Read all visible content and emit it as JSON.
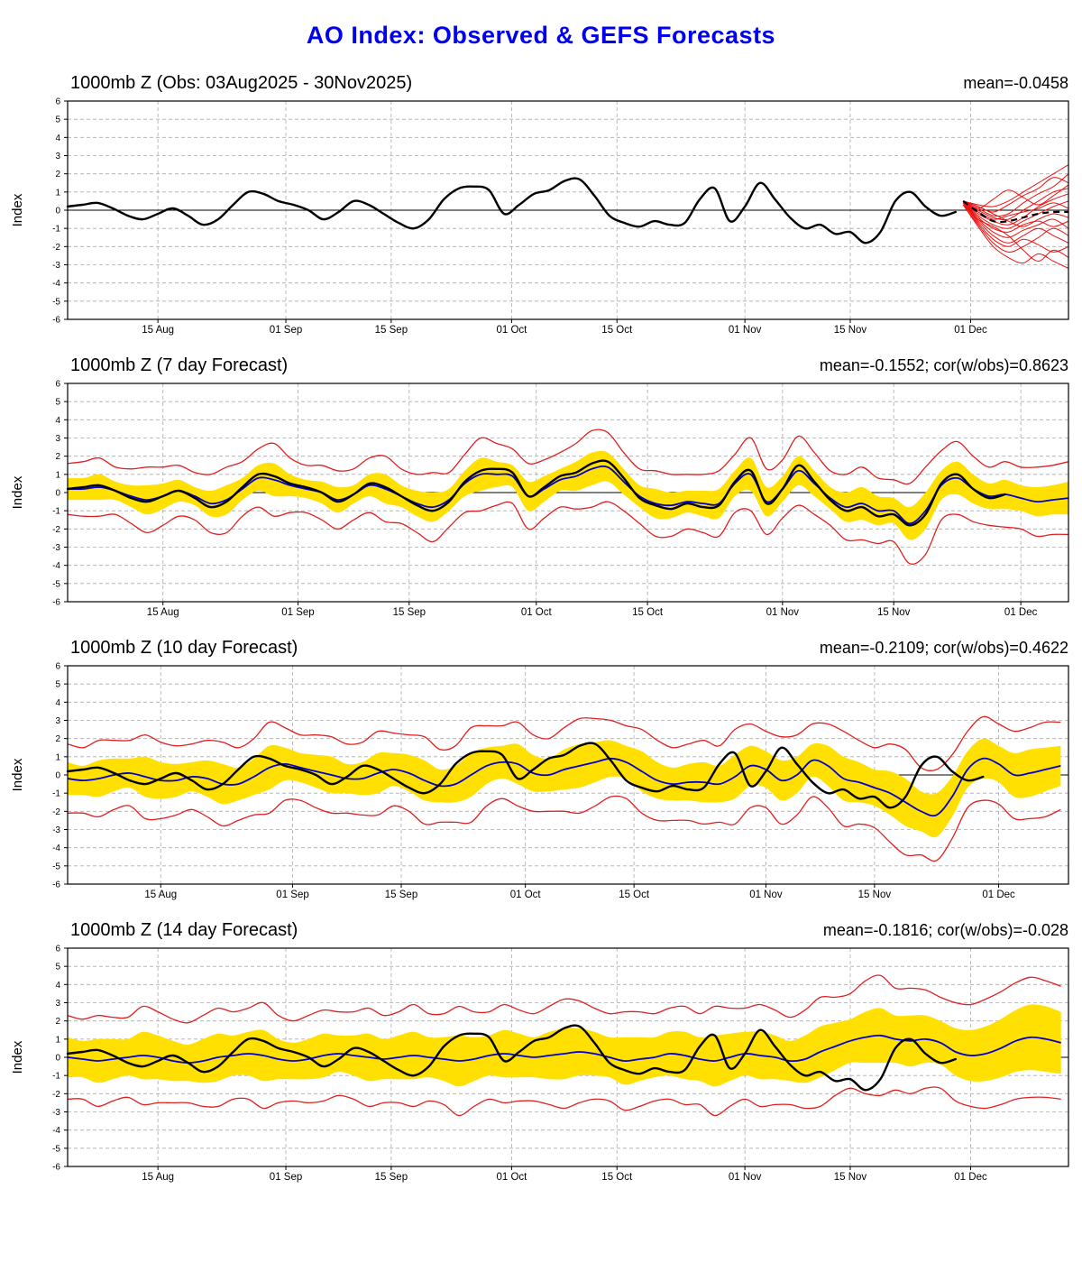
{
  "title": "AO Index: Observed & GEFS Forecasts",
  "colors": {
    "title_blue": "#0000ee",
    "observed": "#000000",
    "forecast_mean_line": "#0000cc",
    "band_yellow": "#ffe000",
    "envelope_red": "#e02020",
    "members_red": "#ee1111",
    "grid": "#aaaaaa",
    "frame": "#000000"
  },
  "axis": {
    "ylabel": "Index",
    "ymin": -6,
    "ymax": 6,
    "yticks": [
      6,
      5,
      4,
      3,
      2,
      1,
      0,
      -1,
      -2,
      -3,
      -4,
      -5,
      -6
    ],
    "xtick_labels": [
      "15 Aug",
      "01 Sep",
      "15 Sep",
      "01 Oct",
      "15 Oct",
      "01 Nov",
      "15 Nov",
      "01 Dec"
    ],
    "xtick_days": [
      12,
      29,
      43,
      59,
      73,
      90,
      104,
      120
    ]
  },
  "chart_data": [
    {
      "type": "line",
      "title": "1000mb Z (Obs: 03Aug2025 - 30Nov2025)",
      "stats": "mean=-0.0458",
      "x_domain": [
        0,
        133
      ],
      "obs": {
        "x_start": 0,
        "x_step": 2,
        "values": [
          0.2,
          0.3,
          0.4,
          0.1,
          -0.3,
          -0.5,
          -0.2,
          0.1,
          -0.3,
          -0.8,
          -0.5,
          0.3,
          1.0,
          0.9,
          0.5,
          0.3,
          0.0,
          -0.5,
          -0.1,
          0.5,
          0.3,
          -0.2,
          -0.7,
          -1.0,
          -0.5,
          0.6,
          1.2,
          1.3,
          1.1,
          -0.2,
          0.3,
          0.9,
          1.1,
          1.6,
          1.7,
          0.8,
          -0.3,
          -0.7,
          -0.9,
          -0.6,
          -0.8,
          -0.7,
          0.6,
          1.2,
          -0.6,
          0.2,
          1.5,
          0.6,
          -0.4,
          -1.0,
          -0.8,
          -1.3,
          -1.2,
          -1.8,
          -1.2,
          0.5,
          1.0,
          0.2,
          -0.3,
          -0.1
        ]
      },
      "forecast_mean": {
        "x_start": 119,
        "x_step": 2,
        "values": [
          0.5,
          -0.1,
          -0.6,
          -0.6,
          -0.4,
          -0.2,
          -0.1,
          -0.1
        ]
      },
      "members": {
        "x_start": 119,
        "x_step": 2,
        "sets": [
          [
            0.5,
            0.3,
            0.2,
            0.5,
            1.0,
            1.5,
            2.0,
            2.5
          ],
          [
            0.5,
            0.2,
            -0.1,
            0.3,
            0.8,
            1.2,
            1.8,
            1.5
          ],
          [
            0.5,
            0.1,
            -0.3,
            -0.2,
            0.4,
            0.9,
            1.3,
            2.0
          ],
          [
            0.5,
            0.0,
            -0.4,
            -0.5,
            0.0,
            0.5,
            1.0,
            1.2
          ],
          [
            0.4,
            -0.2,
            -0.6,
            -0.8,
            -0.4,
            0.2,
            0.6,
            0.9
          ],
          [
            0.4,
            -0.3,
            -0.8,
            -1.0,
            -0.6,
            -0.2,
            0.2,
            0.5
          ],
          [
            0.4,
            -0.1,
            -0.5,
            -0.3,
            -0.1,
            0.1,
            0.4,
            0.1
          ],
          [
            0.5,
            0.2,
            -0.2,
            -0.6,
            -0.9,
            -0.5,
            -0.2,
            -0.4
          ],
          [
            0.4,
            -0.4,
            -1.0,
            -1.2,
            -0.8,
            -0.6,
            -0.9,
            -0.6
          ],
          [
            0.4,
            -0.5,
            -1.2,
            -1.5,
            -1.1,
            -0.8,
            -0.5,
            -1.0
          ],
          [
            0.4,
            -0.6,
            -1.4,
            -1.8,
            -1.4,
            -1.0,
            -1.4,
            -1.8
          ],
          [
            0.4,
            -0.7,
            -1.6,
            -2.0,
            -1.6,
            -1.9,
            -2.3,
            -2.0
          ],
          [
            0.3,
            -0.8,
            -1.8,
            -2.3,
            -2.0,
            -1.5,
            -1.0,
            -1.4
          ],
          [
            0.3,
            -0.9,
            -2.0,
            -2.6,
            -2.9,
            -2.4,
            -2.8,
            -3.2
          ],
          [
            0.3,
            -0.5,
            -0.9,
            -1.4,
            -2.2,
            -2.8,
            -2.2,
            -2.6
          ],
          [
            0.4,
            0.1,
            0.6,
            1.1,
            0.7,
            0.3,
            0.8,
            1.4
          ]
        ]
      }
    },
    {
      "type": "line",
      "title": "1000mb Z (7 day Forecast)",
      "stats": "mean=-0.1552; cor(w/obs)=0.8623",
      "x_domain": [
        0,
        126
      ],
      "obs": "ref:0",
      "mean": {
        "x_start": 0,
        "x_step": 2,
        "values": [
          0.2,
          0.2,
          0.3,
          0.1,
          -0.2,
          -0.4,
          -0.2,
          0.1,
          -0.2,
          -0.6,
          -0.4,
          0.2,
          0.8,
          0.7,
          0.4,
          0.2,
          0.0,
          -0.4,
          -0.1,
          0.4,
          0.2,
          -0.2,
          -0.6,
          -0.8,
          -0.4,
          0.5,
          1.0,
          1.0,
          0.9,
          -0.2,
          0.2,
          0.7,
          0.9,
          1.3,
          1.4,
          0.6,
          -0.2,
          -0.6,
          -0.7,
          -0.5,
          -0.6,
          -0.6,
          0.5,
          1.0,
          -0.5,
          0.2,
          1.2,
          0.5,
          -0.3,
          -0.8,
          -0.6,
          -1.0,
          -1.0,
          -1.7,
          -1.0,
          0.4,
          0.8,
          0.2,
          -0.2,
          -0.1,
          -0.3,
          -0.5,
          -0.4,
          -0.3
        ]
      },
      "spread": [
        0.6,
        0.6,
        0.7,
        0.5,
        0.6,
        0.8,
        0.7,
        0.6,
        0.5,
        0.7,
        0.8,
        0.6,
        0.7,
        0.9,
        0.6,
        0.5,
        0.6,
        0.7,
        0.5,
        0.6,
        0.8,
        0.6,
        0.7,
        0.8,
        0.6,
        0.7,
        0.9,
        0.7,
        0.6,
        0.8,
        0.7,
        0.6,
        0.8,
        0.9,
        0.8,
        0.7,
        0.6,
        0.8,
        0.7,
        0.6,
        0.7,
        0.8,
        0.7,
        0.9,
        0.8,
        0.7,
        0.8,
        0.7,
        0.6,
        0.8,
        0.9,
        0.8,
        0.7,
        0.9,
        1.0,
        0.8,
        0.9,
        0.8,
        0.7,
        0.8,
        0.7,
        0.8,
        0.8,
        0.9
      ],
      "envelope": [
        1.4,
        1.5,
        1.6,
        1.3,
        1.5,
        1.8,
        1.6,
        1.4,
        1.3,
        1.6,
        1.8,
        1.5,
        1.6,
        2.0,
        1.5,
        1.3,
        1.5,
        1.6,
        1.4,
        1.5,
        1.8,
        1.5,
        1.6,
        1.9,
        1.5,
        1.6,
        2.0,
        1.7,
        1.5,
        1.8,
        1.6,
        1.5,
        1.8,
        2.1,
        1.9,
        1.6,
        1.5,
        1.8,
        1.7,
        1.5,
        1.6,
        1.8,
        1.6,
        2.0,
        1.8,
        1.6,
        1.9,
        1.7,
        1.5,
        1.8,
        2.0,
        1.8,
        1.7,
        2.2,
        2.4,
        1.9,
        2.0,
        1.8,
        1.6,
        1.8,
        1.7,
        1.9,
        1.9,
        2.0
      ]
    },
    {
      "type": "line",
      "title": "1000mb Z (10 day Forecast)",
      "stats": "mean=-0.2109; cor(w/obs)=0.4622",
      "x_domain": [
        0,
        129
      ],
      "obs": "ref:0",
      "mean": {
        "x_start": 0,
        "x_step": 2,
        "values": [
          -0.2,
          -0.3,
          -0.2,
          0.0,
          0.1,
          -0.1,
          -0.3,
          -0.3,
          -0.1,
          -0.2,
          -0.5,
          -0.5,
          -0.1,
          0.4,
          0.6,
          0.4,
          0.2,
          0.0,
          -0.2,
          -0.2,
          0.1,
          0.3,
          0.1,
          -0.3,
          -0.6,
          -0.5,
          0.0,
          0.5,
          0.7,
          0.6,
          0.1,
          0.0,
          0.3,
          0.5,
          0.7,
          0.9,
          0.7,
          0.2,
          -0.3,
          -0.5,
          -0.4,
          -0.4,
          -0.5,
          -0.1,
          0.5,
          0.3,
          -0.3,
          0.0,
          0.8,
          0.5,
          -0.2,
          -0.4,
          -0.7,
          -1.0,
          -1.5,
          -2.0,
          -2.2,
          -1.2,
          0.3,
          0.9,
          0.6,
          0.0,
          0.1,
          0.3,
          0.5
        ]
      },
      "spread": [
        0.9,
        0.8,
        1.0,
        0.9,
        0.8,
        1.1,
        1.0,
        0.9,
        0.8,
        1.0,
        1.1,
        0.9,
        1.0,
        1.2,
        0.9,
        0.8,
        0.9,
        1.0,
        0.8,
        0.9,
        1.1,
        0.9,
        1.0,
        1.1,
        0.9,
        1.0,
        1.2,
        1.0,
        0.9,
        1.1,
        1.0,
        0.9,
        1.1,
        1.2,
        1.1,
        1.0,
        0.9,
        1.1,
        1.0,
        0.9,
        1.0,
        1.1,
        1.0,
        1.2,
        1.1,
        1.0,
        1.1,
        1.0,
        0.9,
        1.1,
        1.2,
        1.1,
        1.0,
        1.2,
        1.3,
        1.1,
        1.2,
        1.1,
        1.0,
        1.1,
        1.0,
        1.2,
        1.3,
        1.2,
        1.1
      ],
      "envelope": [
        1.9,
        1.8,
        2.1,
        1.9,
        1.8,
        2.3,
        2.1,
        1.9,
        1.8,
        2.1,
        2.3,
        2.0,
        2.1,
        2.5,
        2.0,
        1.8,
        2.0,
        2.1,
        1.9,
        2.0,
        2.3,
        2.0,
        2.1,
        2.4,
        2.0,
        2.1,
        2.6,
        2.2,
        2.0,
        2.3,
        2.1,
        2.0,
        2.3,
        2.6,
        2.4,
        2.1,
        2.0,
        2.3,
        2.2,
        2.0,
        2.1,
        2.3,
        2.1,
        2.6,
        2.3,
        2.1,
        2.4,
        2.2,
        2.0,
        2.3,
        2.6,
        2.3,
        2.2,
        2.7,
        2.9,
        2.4,
        2.5,
        2.3,
        2.1,
        2.3,
        2.2,
        2.4,
        2.5,
        2.6,
        2.4
      ]
    },
    {
      "type": "line",
      "title": "1000mb Z (14 day Forecast)",
      "stats": "mean=-0.1816; cor(w/obs)=-0.028",
      "x_domain": [
        0,
        133
      ],
      "obs": "ref:0",
      "mean": {
        "x_start": 0,
        "x_step": 2,
        "values": [
          0.0,
          -0.1,
          -0.2,
          -0.1,
          0.0,
          0.1,
          0.0,
          -0.2,
          -0.3,
          -0.2,
          0.0,
          0.1,
          0.2,
          0.1,
          -0.1,
          -0.2,
          -0.1,
          0.1,
          0.2,
          0.1,
          0.0,
          -0.1,
          0.0,
          0.1,
          0.0,
          -0.1,
          -0.2,
          -0.1,
          0.1,
          0.2,
          0.1,
          0.0,
          0.1,
          0.2,
          0.3,
          0.2,
          0.0,
          -0.2,
          -0.1,
          0.0,
          0.2,
          0.1,
          -0.1,
          -0.2,
          0.0,
          0.2,
          0.1,
          0.0,
          -0.2,
          -0.1,
          0.3,
          0.6,
          0.9,
          1.1,
          1.2,
          1.0,
          0.9,
          1.0,
          0.8,
          0.3,
          0.1,
          0.2,
          0.5,
          0.9,
          1.1,
          1.0,
          0.8
        ]
      },
      "spread": [
        1.1,
        1.0,
        1.2,
        1.1,
        1.0,
        1.3,
        1.2,
        1.1,
        1.0,
        1.2,
        1.3,
        1.1,
        1.2,
        1.4,
        1.1,
        1.0,
        1.1,
        1.2,
        1.0,
        1.1,
        1.3,
        1.1,
        1.2,
        1.3,
        1.1,
        1.2,
        1.4,
        1.2,
        1.1,
        1.3,
        1.2,
        1.1,
        1.3,
        1.4,
        1.3,
        1.2,
        1.1,
        1.3,
        1.2,
        1.1,
        1.2,
        1.3,
        1.2,
        1.4,
        1.3,
        1.2,
        1.3,
        1.2,
        1.1,
        1.3,
        1.4,
        1.3,
        1.2,
        1.4,
        1.5,
        1.3,
        1.4,
        1.3,
        1.2,
        1.3,
        1.4,
        1.5,
        1.6,
        1.7,
        1.8,
        1.8,
        1.7
      ],
      "envelope": [
        2.3,
        2.2,
        2.5,
        2.3,
        2.2,
        2.7,
        2.5,
        2.3,
        2.2,
        2.5,
        2.7,
        2.4,
        2.5,
        2.9,
        2.4,
        2.2,
        2.4,
        2.5,
        2.3,
        2.4,
        2.7,
        2.4,
        2.5,
        2.8,
        2.4,
        2.5,
        3.0,
        2.6,
        2.4,
        2.7,
        2.5,
        2.4,
        2.7,
        3.0,
        2.8,
        2.5,
        2.4,
        2.7,
        2.6,
        2.4,
        2.5,
        2.7,
        2.5,
        3.0,
        2.7,
        2.5,
        2.8,
        2.6,
        2.4,
        2.7,
        3.0,
        2.7,
        2.6,
        3.1,
        3.3,
        2.8,
        2.9,
        2.7,
        2.5,
        2.7,
        2.8,
        3.0,
        3.1,
        3.2,
        3.3,
        3.2,
        3.1
      ]
    }
  ]
}
